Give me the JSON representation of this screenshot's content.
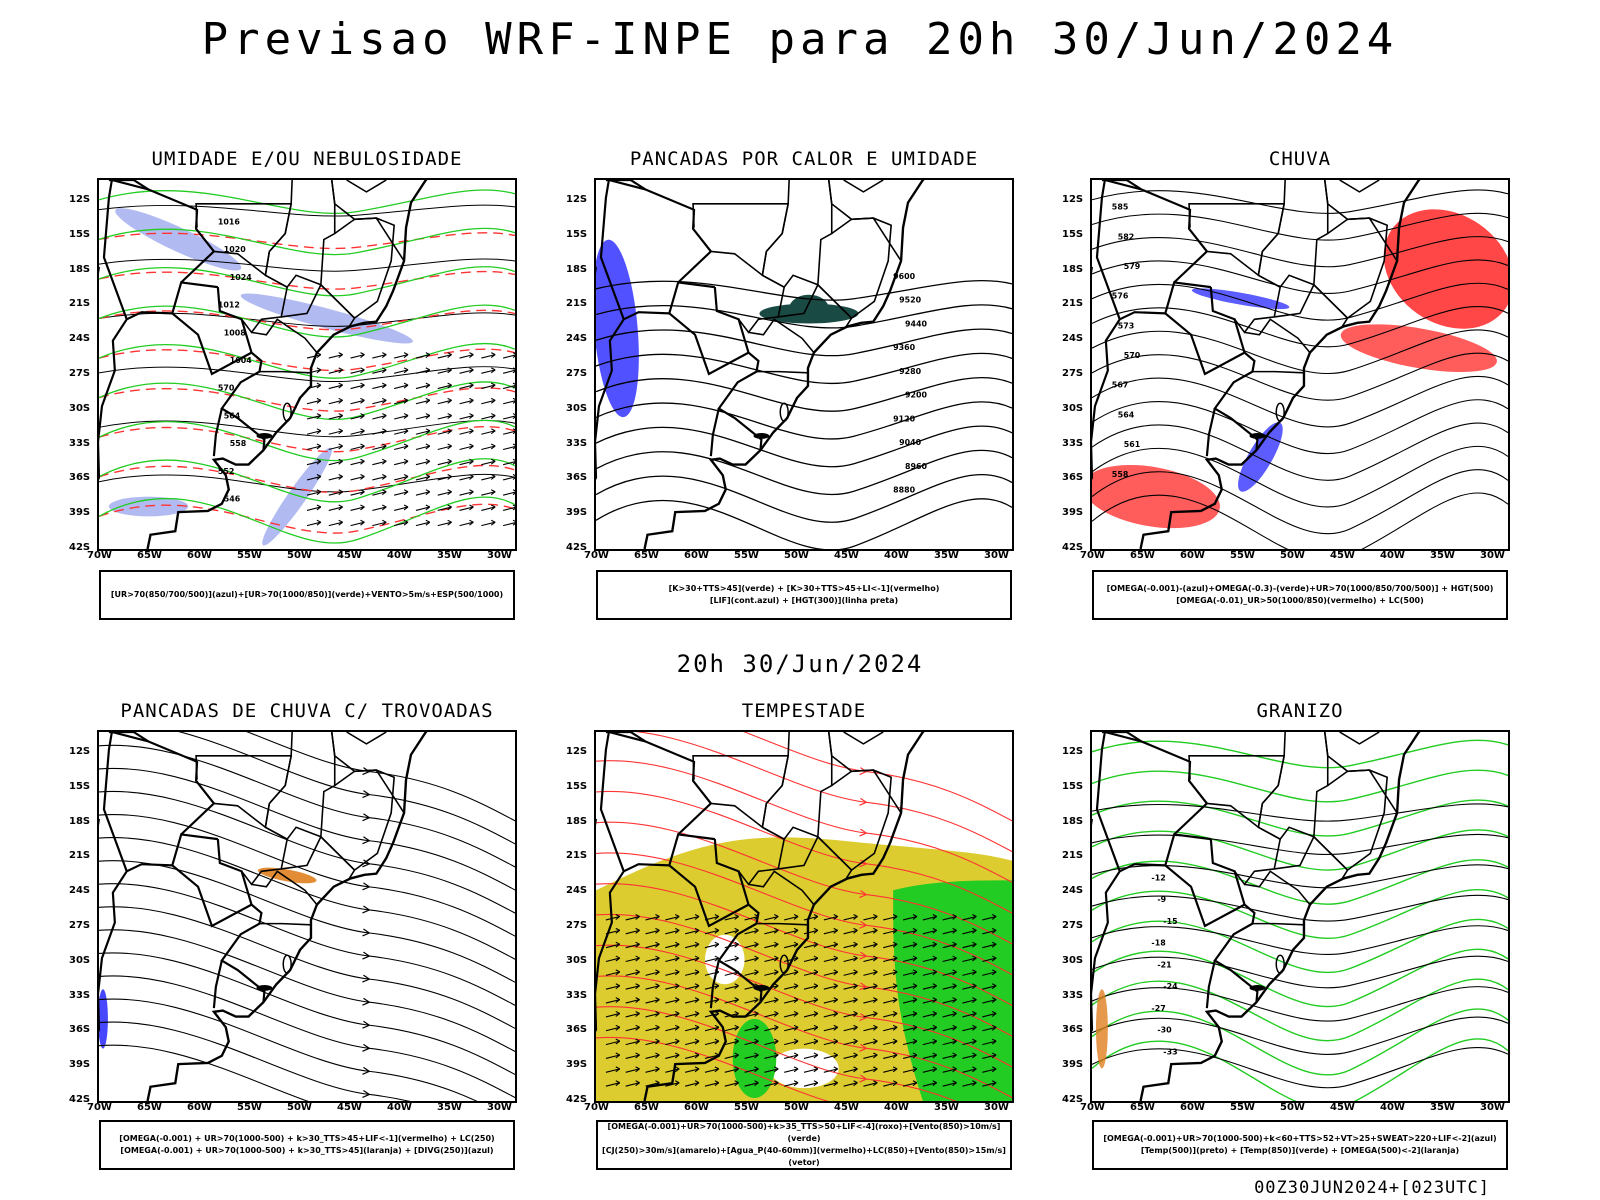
{
  "title": "Previsao WRF-INPE  para 20h 30/Jun/2024",
  "subtitle": "20h 30/Jun/2024",
  "footer": "00Z30JUN2024+[023UTC]",
  "axes": {
    "lat_labels": [
      "12S",
      "15S",
      "18S",
      "21S",
      "24S",
      "27S",
      "30S",
      "33S",
      "36S",
      "39S",
      "42S"
    ],
    "lon_labels": [
      "70W",
      "65W",
      "60W",
      "55W",
      "50W",
      "45W",
      "40W",
      "35W",
      "30W"
    ]
  },
  "panels": [
    {
      "id": "umidade",
      "title": "UMIDADE E/OU NEBULOSIDADE",
      "legend": [
        "[UR>70(850/700/500)](azul)+[UR>70(1000/850)](verde)+VENTO>5m/s+ESP(500/1000)"
      ],
      "contour_labels": [
        "1016",
        "1020",
        "1024",
        "1012",
        "1008",
        "1004",
        "570",
        "564",
        "558",
        "552",
        "546"
      ]
    },
    {
      "id": "pancadas",
      "title": "PANCADAS POR CALOR E UMIDADE",
      "legend": [
        "[K>30+TTS>45](verde) + [K>30+TTS>45+LI<-1](vermelho)",
        "[LIF](cont.azul) + [HGT(300)](linha preta)"
      ],
      "contour_labels": [
        "9600",
        "9520",
        "9440",
        "9360",
        "9280",
        "9200",
        "9120",
        "9040",
        "8960",
        "8880"
      ]
    },
    {
      "id": "chuva",
      "title": "CHUVA",
      "legend": [
        "[OMEGA(-0.001)-(azul)+OMEGA(-0.3)-(verde)+UR>70(1000/850/700/500)] + HGT(500)",
        "[OMEGA(-0.01)_UR>50(1000/850)(vermelho) + LC(500)"
      ],
      "contour_labels": [
        "585",
        "582",
        "579",
        "576",
        "573",
        "570",
        "567",
        "564",
        "561",
        "558"
      ]
    },
    {
      "id": "trovoadas",
      "title": "PANCADAS DE CHUVA C/ TROVOADAS",
      "legend": [
        "[OMEGA(-0.001) + UR>70(1000-500) + k>30_TTS>45+LIF<-1](vermelho) + LC(250)",
        "[OMEGA(-0.001) + UR>70(1000-500) + k>30_TTS>45](laranja) + [DIVG(250)](azul)"
      ],
      "contour_labels": []
    },
    {
      "id": "tempestade",
      "title": "TEMPESTADE",
      "legend": [
        "[OMEGA(-0.001)+UR>70(1000-500)+k>35_TTS>50+LIF<-4](roxo)+[Vento(850)>10m/s](verde)",
        "[CJ(250)>30m/s](amarelo)+[Agua_P(40-60mm)](vermelho)+LC(850)+[Vento(850)>15m/s](vetor)"
      ],
      "contour_labels": []
    },
    {
      "id": "granizo",
      "title": "GRANIZO",
      "legend": [
        "[OMEGA(-0.001)+UR>70(1000-500)+k<60+TTS>52+VT>25+SWEAT>220+LIF<-2](azul)",
        "[Temp(500)](preto) + [Temp(850)](verde) + [OMEGA(500)<-2](laranja)"
      ],
      "contour_labels": [
        "-12",
        "-9",
        "-15",
        "-18",
        "-21",
        "-24",
        "-27",
        "-30",
        "-33"
      ]
    }
  ],
  "colors": {
    "blue": "#3333ff",
    "lightblue": "#aab4f0",
    "green": "#22cc22",
    "red": "#ff3333",
    "orange": "#e08020",
    "yellow": "#dccc30",
    "darkgreen": "#1a4a44"
  }
}
